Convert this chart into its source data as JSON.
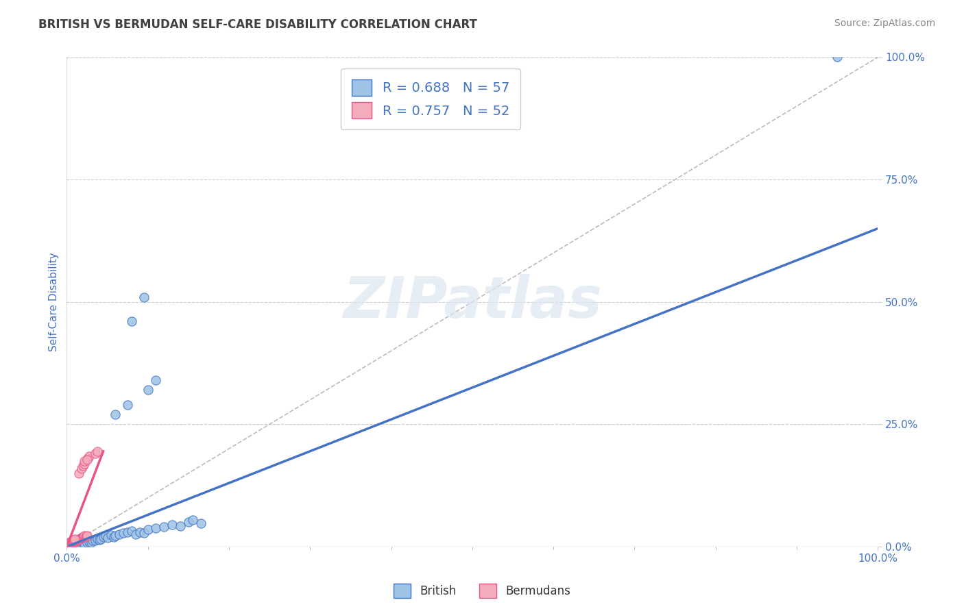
{
  "title": "BRITISH VS BERMUDAN SELF-CARE DISABILITY CORRELATION CHART",
  "source": "Source: ZipAtlas.com",
  "xlabel": "",
  "ylabel": "Self-Care Disability",
  "xlim": [
    0,
    1
  ],
  "ylim": [
    0,
    1
  ],
  "xtick_labels": [
    "0.0%",
    "100.0%"
  ],
  "ytick_labels": [
    "0.0%",
    "25.0%",
    "50.0%",
    "75.0%",
    "100.0%"
  ],
  "ytick_positions": [
    0,
    0.25,
    0.5,
    0.75,
    1.0
  ],
  "legend_entries": [
    {
      "label": "R = 0.688   N = 57",
      "color": "#aac4e0"
    },
    {
      "label": "R = 0.757   N = 52",
      "color": "#f4a0b0"
    }
  ],
  "bottom_legend": [
    {
      "label": "British",
      "color": "#aac4e0"
    },
    {
      "label": "Bermudans",
      "color": "#f4a0b0"
    }
  ],
  "british_scatter": [
    [
      0.001,
      0.002
    ],
    [
      0.002,
      0.001
    ],
    [
      0.002,
      0.003
    ],
    [
      0.003,
      0.002
    ],
    [
      0.003,
      0.001
    ],
    [
      0.004,
      0.003
    ],
    [
      0.005,
      0.002
    ],
    [
      0.005,
      0.004
    ],
    [
      0.006,
      0.003
    ],
    [
      0.007,
      0.002
    ],
    [
      0.008,
      0.004
    ],
    [
      0.009,
      0.003
    ],
    [
      0.01,
      0.004
    ],
    [
      0.011,
      0.005
    ],
    [
      0.012,
      0.004
    ],
    [
      0.013,
      0.005
    ],
    [
      0.015,
      0.006
    ],
    [
      0.016,
      0.005
    ],
    [
      0.018,
      0.007
    ],
    [
      0.02,
      0.008
    ],
    [
      0.022,
      0.006
    ],
    [
      0.025,
      0.009
    ],
    [
      0.028,
      0.01
    ],
    [
      0.03,
      0.008
    ],
    [
      0.032,
      0.012
    ],
    [
      0.035,
      0.013
    ],
    [
      0.038,
      0.015
    ],
    [
      0.04,
      0.014
    ],
    [
      0.042,
      0.016
    ],
    [
      0.045,
      0.02
    ],
    [
      0.048,
      0.022
    ],
    [
      0.05,
      0.018
    ],
    [
      0.055,
      0.024
    ],
    [
      0.058,
      0.02
    ],
    [
      0.06,
      0.022
    ],
    [
      0.065,
      0.025
    ],
    [
      0.07,
      0.028
    ],
    [
      0.075,
      0.03
    ],
    [
      0.08,
      0.032
    ],
    [
      0.085,
      0.025
    ],
    [
      0.09,
      0.03
    ],
    [
      0.095,
      0.028
    ],
    [
      0.1,
      0.035
    ],
    [
      0.11,
      0.038
    ],
    [
      0.12,
      0.04
    ],
    [
      0.13,
      0.045
    ],
    [
      0.14,
      0.042
    ],
    [
      0.15,
      0.05
    ],
    [
      0.155,
      0.055
    ],
    [
      0.165,
      0.048
    ],
    [
      0.06,
      0.27
    ],
    [
      0.075,
      0.29
    ],
    [
      0.1,
      0.32
    ],
    [
      0.11,
      0.34
    ],
    [
      0.08,
      0.46
    ],
    [
      0.095,
      0.51
    ],
    [
      0.95,
      1.0
    ]
  ],
  "bermudan_scatter": [
    [
      0.001,
      0.001
    ],
    [
      0.002,
      0.002
    ],
    [
      0.002,
      0.003
    ],
    [
      0.003,
      0.003
    ],
    [
      0.003,
      0.004
    ],
    [
      0.004,
      0.004
    ],
    [
      0.004,
      0.005
    ],
    [
      0.005,
      0.005
    ],
    [
      0.005,
      0.006
    ],
    [
      0.006,
      0.006
    ],
    [
      0.006,
      0.007
    ],
    [
      0.007,
      0.007
    ],
    [
      0.007,
      0.008
    ],
    [
      0.008,
      0.008
    ],
    [
      0.008,
      0.009
    ],
    [
      0.009,
      0.009
    ],
    [
      0.009,
      0.01
    ],
    [
      0.01,
      0.01
    ],
    [
      0.01,
      0.011
    ],
    [
      0.011,
      0.011
    ],
    [
      0.012,
      0.012
    ],
    [
      0.013,
      0.013
    ],
    [
      0.014,
      0.014
    ],
    [
      0.015,
      0.015
    ],
    [
      0.016,
      0.016
    ],
    [
      0.017,
      0.017
    ],
    [
      0.018,
      0.018
    ],
    [
      0.019,
      0.019
    ],
    [
      0.02,
      0.02
    ],
    [
      0.021,
      0.021
    ],
    [
      0.022,
      0.022
    ],
    [
      0.023,
      0.02
    ],
    [
      0.024,
      0.021
    ],
    [
      0.025,
      0.022
    ],
    [
      0.026,
      0.18
    ],
    [
      0.028,
      0.185
    ],
    [
      0.035,
      0.19
    ],
    [
      0.038,
      0.195
    ],
    [
      0.015,
      0.15
    ],
    [
      0.018,
      0.16
    ],
    [
      0.02,
      0.165
    ],
    [
      0.022,
      0.17
    ],
    [
      0.022,
      0.175
    ],
    [
      0.025,
      0.178
    ],
    [
      0.003,
      0.008
    ],
    [
      0.004,
      0.009
    ],
    [
      0.005,
      0.01
    ],
    [
      0.006,
      0.011
    ],
    [
      0.007,
      0.012
    ],
    [
      0.008,
      0.013
    ],
    [
      0.009,
      0.014
    ],
    [
      0.01,
      0.015
    ]
  ],
  "british_line_x": [
    0.0,
    1.0
  ],
  "british_line_y": [
    0.0,
    0.65
  ],
  "bermudan_line_x": [
    0.0,
    0.045
  ],
  "bermudan_line_y": [
    0.0,
    0.195
  ],
  "diagonal_line": [
    [
      0.0,
      0.0
    ],
    [
      1.0,
      1.0
    ]
  ],
  "british_color": "#4472c4",
  "bermudan_color": "#e85585",
  "british_scatter_color": "#9dc3e6",
  "bermudan_scatter_color": "#f4acbc",
  "diagonal_color": "#bbbbbb",
  "title_color": "#404040",
  "axis_label_color": "#4472c4",
  "tick_label_color": "#4472c4",
  "grid_color": "#cccccc",
  "watermark": "ZIPatlas",
  "watermark_color": "#dce6f1"
}
